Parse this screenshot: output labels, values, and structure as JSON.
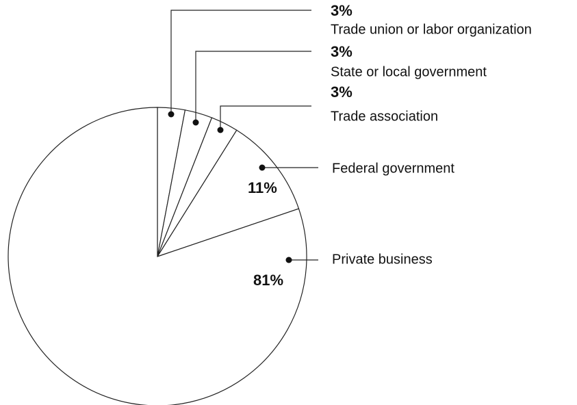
{
  "chart_data": {
    "type": "pie",
    "categories": [
      "Trade union or labor organization",
      "State or local government",
      "Trade association",
      "Federal government",
      "Private business"
    ],
    "values": [
      3,
      3,
      3,
      11,
      81
    ],
    "value_labels": [
      "3%",
      "3%",
      "3%",
      "11%",
      "81%"
    ],
    "start_angle": 0,
    "direction": "clockwise",
    "color": "#ffffff"
  }
}
